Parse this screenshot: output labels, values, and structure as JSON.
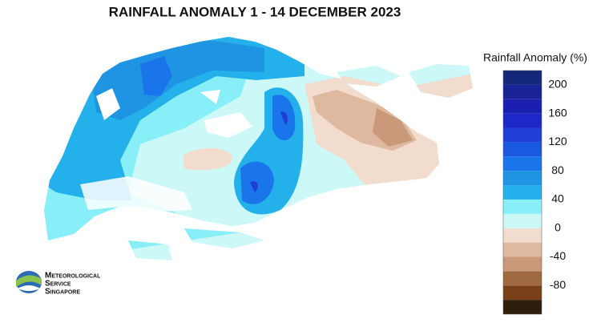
{
  "title": "RAINFALL ANOMALY 1 - 14 DECEMBER 2023",
  "colorbar": {
    "label": "Rainfall Anomaly (%)",
    "bins": [
      -120,
      -100,
      -80,
      -60,
      -40,
      -20,
      0,
      20,
      40,
      60,
      80,
      100,
      120,
      140,
      160,
      180,
      200,
      220
    ],
    "colors": [
      "#2e1e0c",
      "#7a4018",
      "#a06a40",
      "#c9997a",
      "#dfb8a0",
      "#f2dccd",
      "#cdf8f8",
      "#88eef8",
      "#24b0ea",
      "#1e94e2",
      "#1a74ea",
      "#1b58e0",
      "#1f3fd6",
      "#1e28c8",
      "#1b1fb0",
      "#1a2396",
      "#14287a"
    ],
    "ticks": [
      -80,
      -40,
      0,
      40,
      80,
      120,
      160,
      200
    ]
  },
  "logo": {
    "lines": [
      "Meteorological",
      "Service",
      "Singapore"
    ]
  }
}
